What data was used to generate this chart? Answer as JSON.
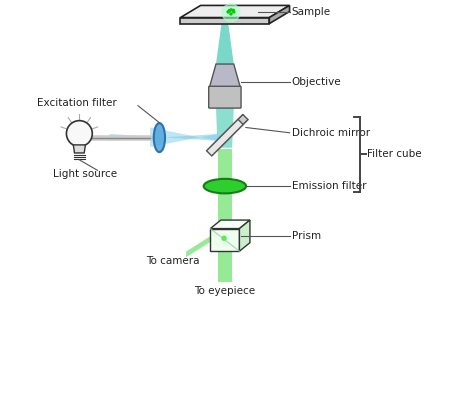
{
  "bg_color": "#ffffff",
  "fig_width": 4.74,
  "fig_height": 4.07,
  "dpi": 100,
  "labels": {
    "sample": "Sample",
    "objective": "Objective",
    "excitation_filter": "Excitation filter",
    "light_source": "Light source",
    "dichroic_mirror": "Dichroic mirror",
    "filter_cube": "Filter cube",
    "emission_filter": "Emission filter",
    "prism": "Prism",
    "to_camera": "To camera",
    "to_eyepiece": "To eyepiece"
  },
  "colors": {
    "teal_beam": "#40C8B0",
    "green_beam": "#50DD50",
    "light_blue": "#70C8E8",
    "blue_filter": "#50A8D8",
    "annotation_line": "#555555"
  }
}
